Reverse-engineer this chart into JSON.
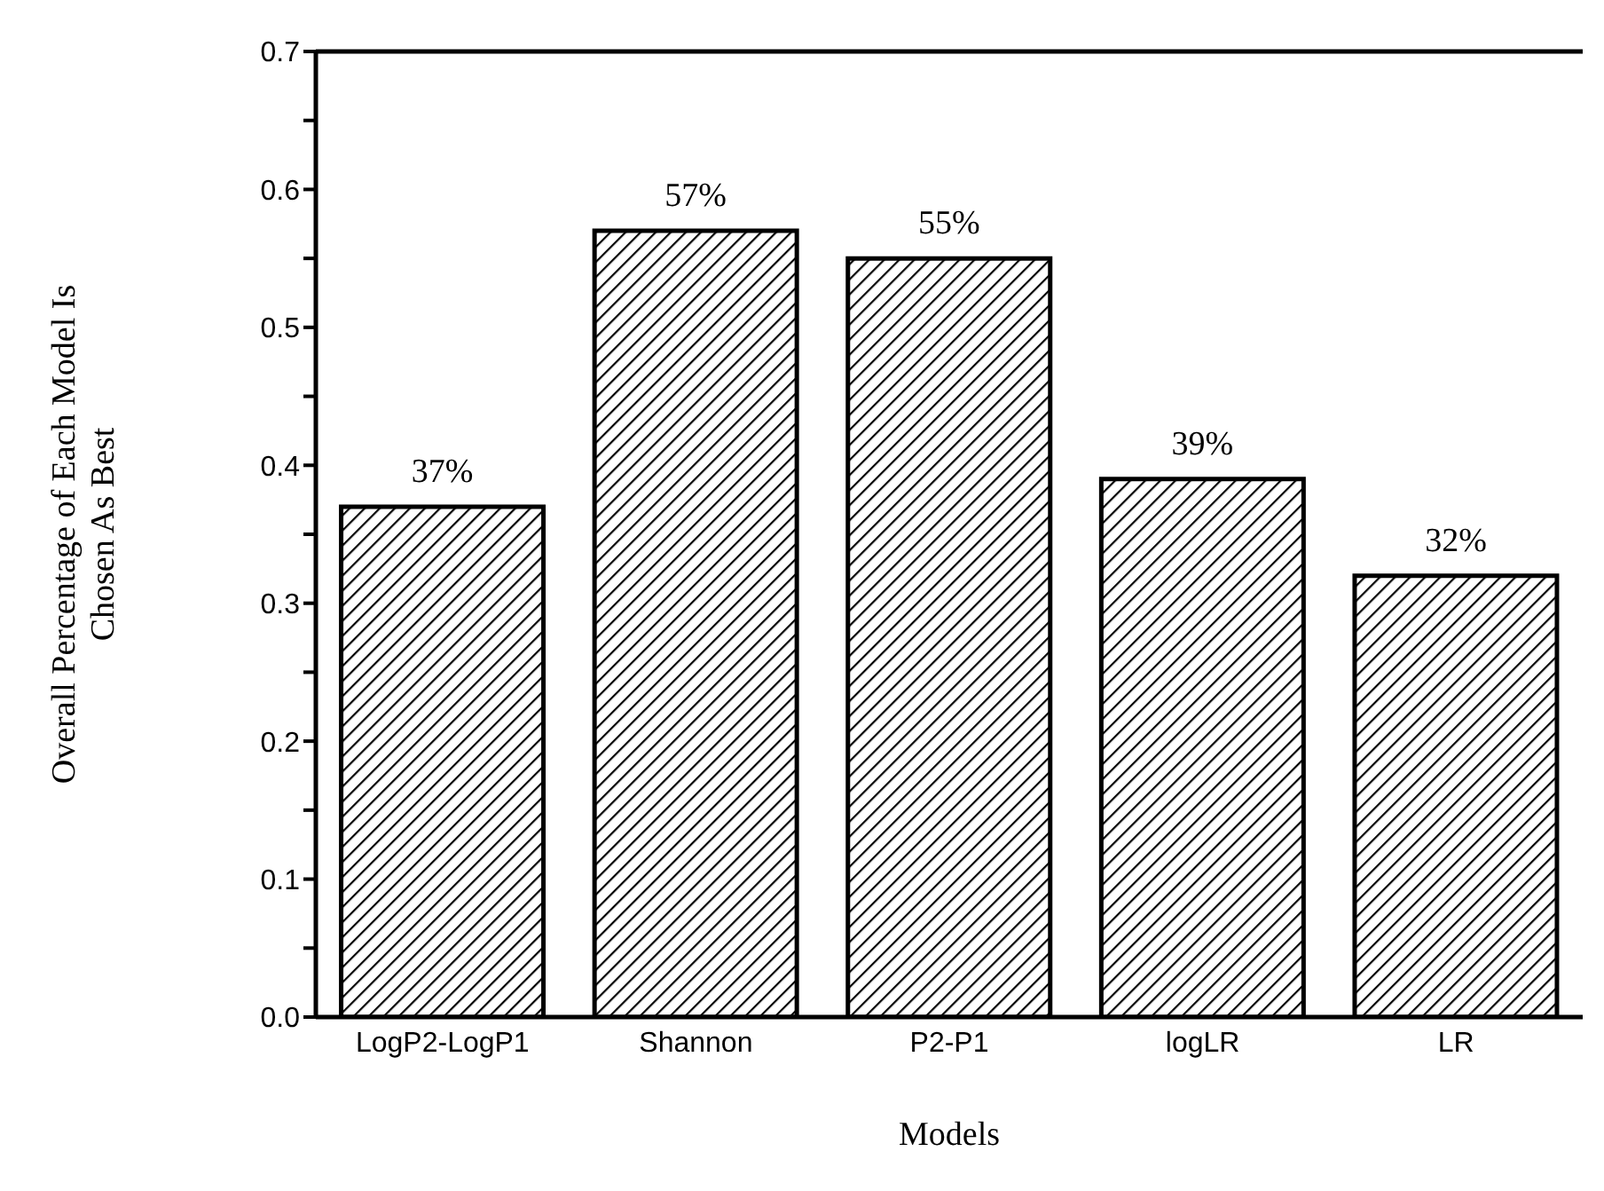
{
  "chart_data": {
    "type": "bar",
    "xlabel": "Models",
    "ylabel": "Overall Percentage of Each Model Is\nChosen As Best",
    "categories": [
      "LogP2-LogP1",
      "Shannon",
      "P2-P1",
      "logLR",
      "LR"
    ],
    "values": [
      0.37,
      0.57,
      0.55,
      0.39,
      0.32
    ],
    "value_labels": [
      "37%",
      "57%",
      "55%",
      "39%",
      "32%"
    ],
    "color": "#000000",
    "ylim": [
      0,
      0.7
    ],
    "yticks": [
      {
        "value": 0,
        "label": "0.0"
      },
      {
        "value": 0.05,
        "label": null
      },
      0.1,
      {
        "value": 0.15,
        "label": null
      },
      0.2,
      {
        "value": 0.25,
        "label": null
      },
      0.3,
      {
        "value": 0.35,
        "label": null
      },
      0.4,
      {
        "value": 0.45,
        "label": null
      },
      0.5,
      {
        "value": 0.55,
        "label": null
      },
      0.6,
      {
        "value": 0.65,
        "label": null
      },
      0.7
    ],
    "grid": false
  }
}
